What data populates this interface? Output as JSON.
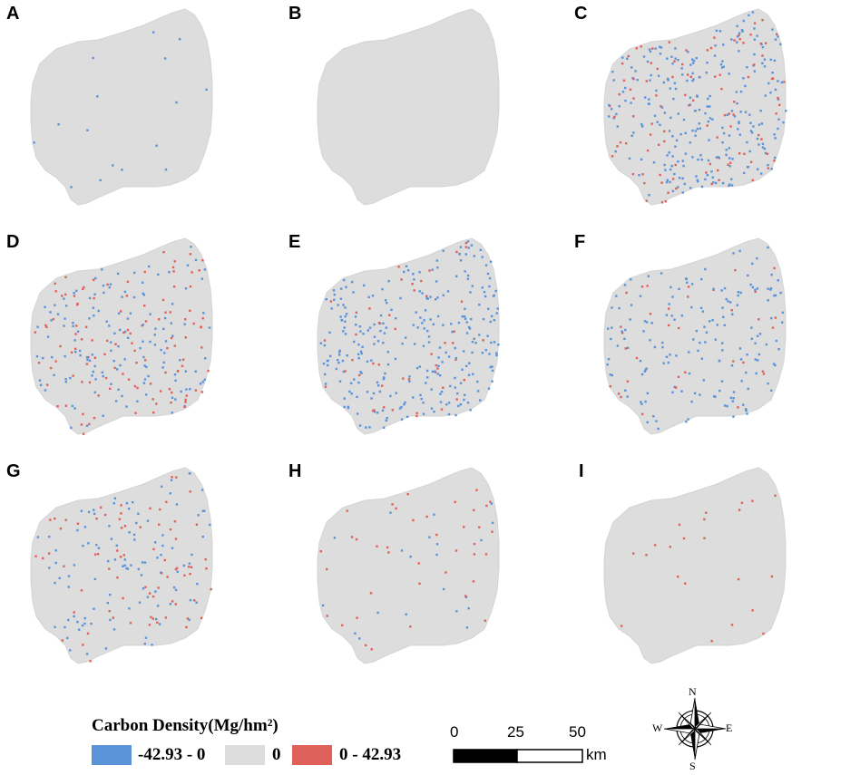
{
  "panels": [
    {
      "label": "A",
      "blue": 0.012,
      "red": 0.0
    },
    {
      "label": "B",
      "blue": 0.0,
      "red": 0.0
    },
    {
      "label": "C",
      "blue": 0.17,
      "red": 0.07
    },
    {
      "label": "D",
      "blue": 0.1,
      "red": 0.09
    },
    {
      "label": "E",
      "blue": 0.2,
      "red": 0.04
    },
    {
      "label": "F",
      "blue": 0.1,
      "red": 0.03
    },
    {
      "label": "G",
      "blue": 0.08,
      "red": 0.05
    },
    {
      "label": "H",
      "blue": 0.02,
      "red": 0.025
    },
    {
      "label": "I",
      "blue": 0.0,
      "red": 0.012
    }
  ],
  "legend": {
    "title": "Carbon Density(Mg/hm²)",
    "classes": [
      {
        "label": "-42.93 - 0",
        "color": "#5b93d9"
      },
      {
        "label": "0",
        "color": "#dddddd"
      },
      {
        "label": "0 - 42.93",
        "color": "#e0605a"
      }
    ]
  },
  "scalebar": {
    "ticks": [
      "0",
      "25",
      "50"
    ],
    "unit": "km"
  },
  "compass": {
    "n": "N",
    "s": "S",
    "e": "E",
    "w": "W"
  },
  "colors": {
    "region": "#dddddd",
    "decrease": "#5b93d9",
    "increase": "#e0605a"
  }
}
